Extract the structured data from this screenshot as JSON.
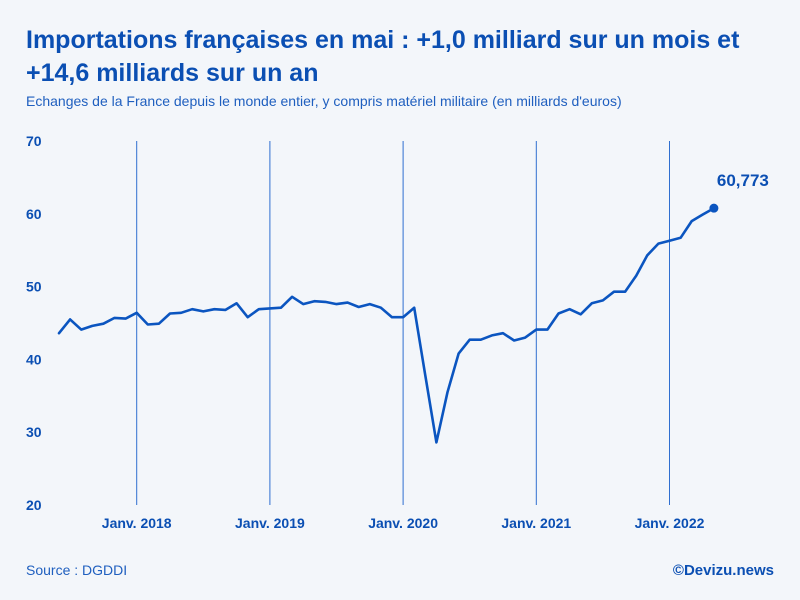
{
  "header": {
    "title": "Importations françaises en mai : +1,0 milliard sur un mois et +14,6 milliards sur un an",
    "subtitle": "Echanges de la France depuis le monde entier, y compris matériel militaire (en milliards d'euros)"
  },
  "footer": {
    "source": "Source : DGDDI",
    "brand": "©Devizu.news"
  },
  "colors": {
    "line": "#0b55c0",
    "grid": "#2f6fd0",
    "text": "#0b4fb3",
    "background": "#f3f6fa"
  },
  "chart_data": {
    "type": "line",
    "title": "Importations françaises en mai : +1,0 milliard sur un mois et +14,6 milliards sur un an",
    "xlabel": "",
    "ylabel": "",
    "ylim": [
      20,
      70
    ],
    "yticks": [
      20,
      30,
      40,
      50,
      60,
      70
    ],
    "start_month": "2017-06",
    "x_ticks": [
      {
        "label": "Janv. 2018",
        "index": 7
      },
      {
        "label": "Janv. 2019",
        "index": 19
      },
      {
        "label": "Janv. 2020",
        "index": 31
      },
      {
        "label": "Janv. 2021",
        "index": 43
      },
      {
        "label": "Janv. 2022",
        "index": 55
      }
    ],
    "series": [
      {
        "name": "Importations",
        "values": [
          43.6,
          45.5,
          44.1,
          44.6,
          44.9,
          45.7,
          45.6,
          46.4,
          44.8,
          44.9,
          46.3,
          46.4,
          46.9,
          46.6,
          46.9,
          46.8,
          47.7,
          45.8,
          46.9,
          47.0,
          47.1,
          48.6,
          47.6,
          48.0,
          47.9,
          47.6,
          47.8,
          47.2,
          47.6,
          47.1,
          45.8,
          45.8,
          47.1,
          37.8,
          28.6,
          35.5,
          40.8,
          42.7,
          42.7,
          43.3,
          43.6,
          42.6,
          43.0,
          44.1,
          44.1,
          46.3,
          46.9,
          46.2,
          47.7,
          48.1,
          49.3,
          49.3,
          51.5,
          54.3,
          55.9,
          56.3,
          56.7,
          59.0,
          59.9,
          60.773
        ]
      }
    ],
    "end_label": "60,773"
  }
}
